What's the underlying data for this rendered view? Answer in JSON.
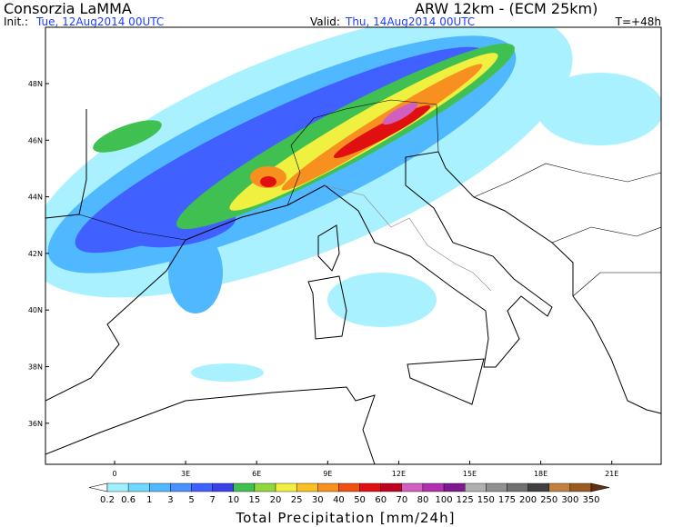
{
  "header": {
    "title": "Consorzia LaMMA",
    "model": "ARW 12km  -  (ECM 25km)",
    "init_label": "Init.:",
    "init": "Tue, 12Aug2014 00UTC",
    "valid_label": "Valid:",
    "valid": "Thu, 14Aug2014 00UTC",
    "lead": "T=+48h"
  },
  "map": {
    "lat_labels": [
      "48N",
      "46N",
      "44N",
      "42N",
      "40N",
      "38N",
      "36N"
    ],
    "lon_labels": [
      "0",
      "3E",
      "6E",
      "9E",
      "12E",
      "15E",
      "18E",
      "21E"
    ]
  },
  "colorbar": {
    "label": "Total Precipitation [mm/24h]",
    "levels": [
      "0.2",
      "0.6",
      "1",
      "3",
      "5",
      "7",
      "10",
      "15",
      "20",
      "25",
      "30",
      "40",
      "50",
      "60",
      "70",
      "80",
      "100",
      "125",
      "150",
      "175",
      "200",
      "250",
      "300",
      "350"
    ],
    "colors": [
      "#a0f0ff",
      "#70d8ff",
      "#50b8ff",
      "#4a90ff",
      "#4060ff",
      "#3a40e8",
      "#40c050",
      "#90d840",
      "#f0f040",
      "#f8c020",
      "#f89020",
      "#f05010",
      "#e01010",
      "#c00020",
      "#d060c0",
      "#b030b0",
      "#801890",
      "#b0b0b0",
      "#909090",
      "#707070",
      "#404040",
      "#c08040",
      "#9a5a20",
      "#603010"
    ]
  }
}
